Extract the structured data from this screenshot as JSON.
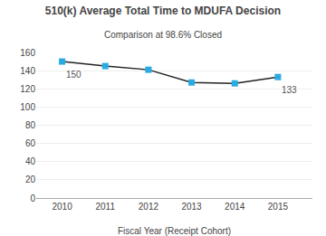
{
  "chart_data": {
    "type": "line",
    "title": "510(k) Average Total Time to MDUFA Decision",
    "subtitle": "Comparison at 98.6% Closed",
    "xlabel": "Fiscal Year (Receipt Cohort)",
    "x": [
      2010,
      2011,
      2012,
      2013,
      2014,
      2015
    ],
    "values": [
      150,
      145,
      141,
      127,
      126,
      133
    ],
    "color": "#222222",
    "colors": [
      "#29ABE2",
      "#29ABE2",
      "#29ABE2",
      "#29ABE2",
      "#29ABE2",
      "#29ABE2"
    ],
    "marker": "square",
    "annotations": [
      {
        "x": 2010,
        "y": 150,
        "text": "150"
      },
      {
        "x": 2015,
        "y": 133,
        "text": "133"
      }
    ],
    "xlim": [
      2009.4,
      2015.8
    ],
    "xticks": [
      2010,
      2011,
      2012,
      2013,
      2014,
      2015
    ],
    "ylim": [
      0,
      160
    ],
    "yticks": [
      0,
      20,
      40,
      60,
      80,
      100,
      120,
      140,
      160
    ],
    "grid": true
  }
}
